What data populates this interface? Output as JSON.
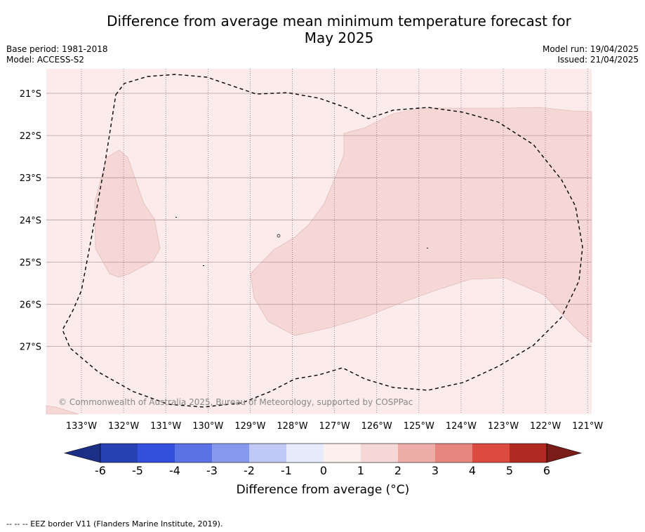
{
  "title_line1": "Difference from average mean minimum temperature forecast for",
  "title_line2": "May 2025",
  "meta_left": {
    "base_period": "Base period: 1981-2018",
    "model": "Model: ACCESS-S2"
  },
  "meta_right": {
    "model_run": "Model run: 19/04/2025",
    "issued": "Issued: 21/04/2025"
  },
  "map": {
    "lon_labels": [
      "133°W",
      "132°W",
      "131°W",
      "130°W",
      "129°W",
      "128°W",
      "127°W",
      "126°W",
      "125°W",
      "124°W",
      "123°W",
      "122°W",
      "121°W"
    ],
    "lat_labels": [
      "21°S",
      "22°S",
      "23°S",
      "24°S",
      "25°S",
      "26°S",
      "27°S"
    ],
    "copyright": "© Commonwealth of Australia 2025, Bureau of Meteorology, supported by COSPPac",
    "colors": {
      "range_0_1": "#fbeceb",
      "range_1_2": "#f5d7d6"
    }
  },
  "colorbar": {
    "ticks": [
      "-6",
      "-5",
      "-4",
      "-3",
      "-2",
      "-1",
      "0",
      "1",
      "2",
      "3",
      "4",
      "5",
      "6"
    ],
    "colors": [
      "#1c2f86",
      "#2740b4",
      "#3351de",
      "#5a72e4",
      "#8799ec",
      "#c0c9f5",
      "#e8ebfb",
      "#fdefed",
      "#f5d7d6",
      "#edaea8",
      "#e6867f",
      "#dc4a42",
      "#b02a22",
      "#7a1c18"
    ],
    "label": "Difference from average (°C)"
  },
  "footnote": "-- -- -- EEZ border V11 (Flanders Marine Institute, 2019)."
}
